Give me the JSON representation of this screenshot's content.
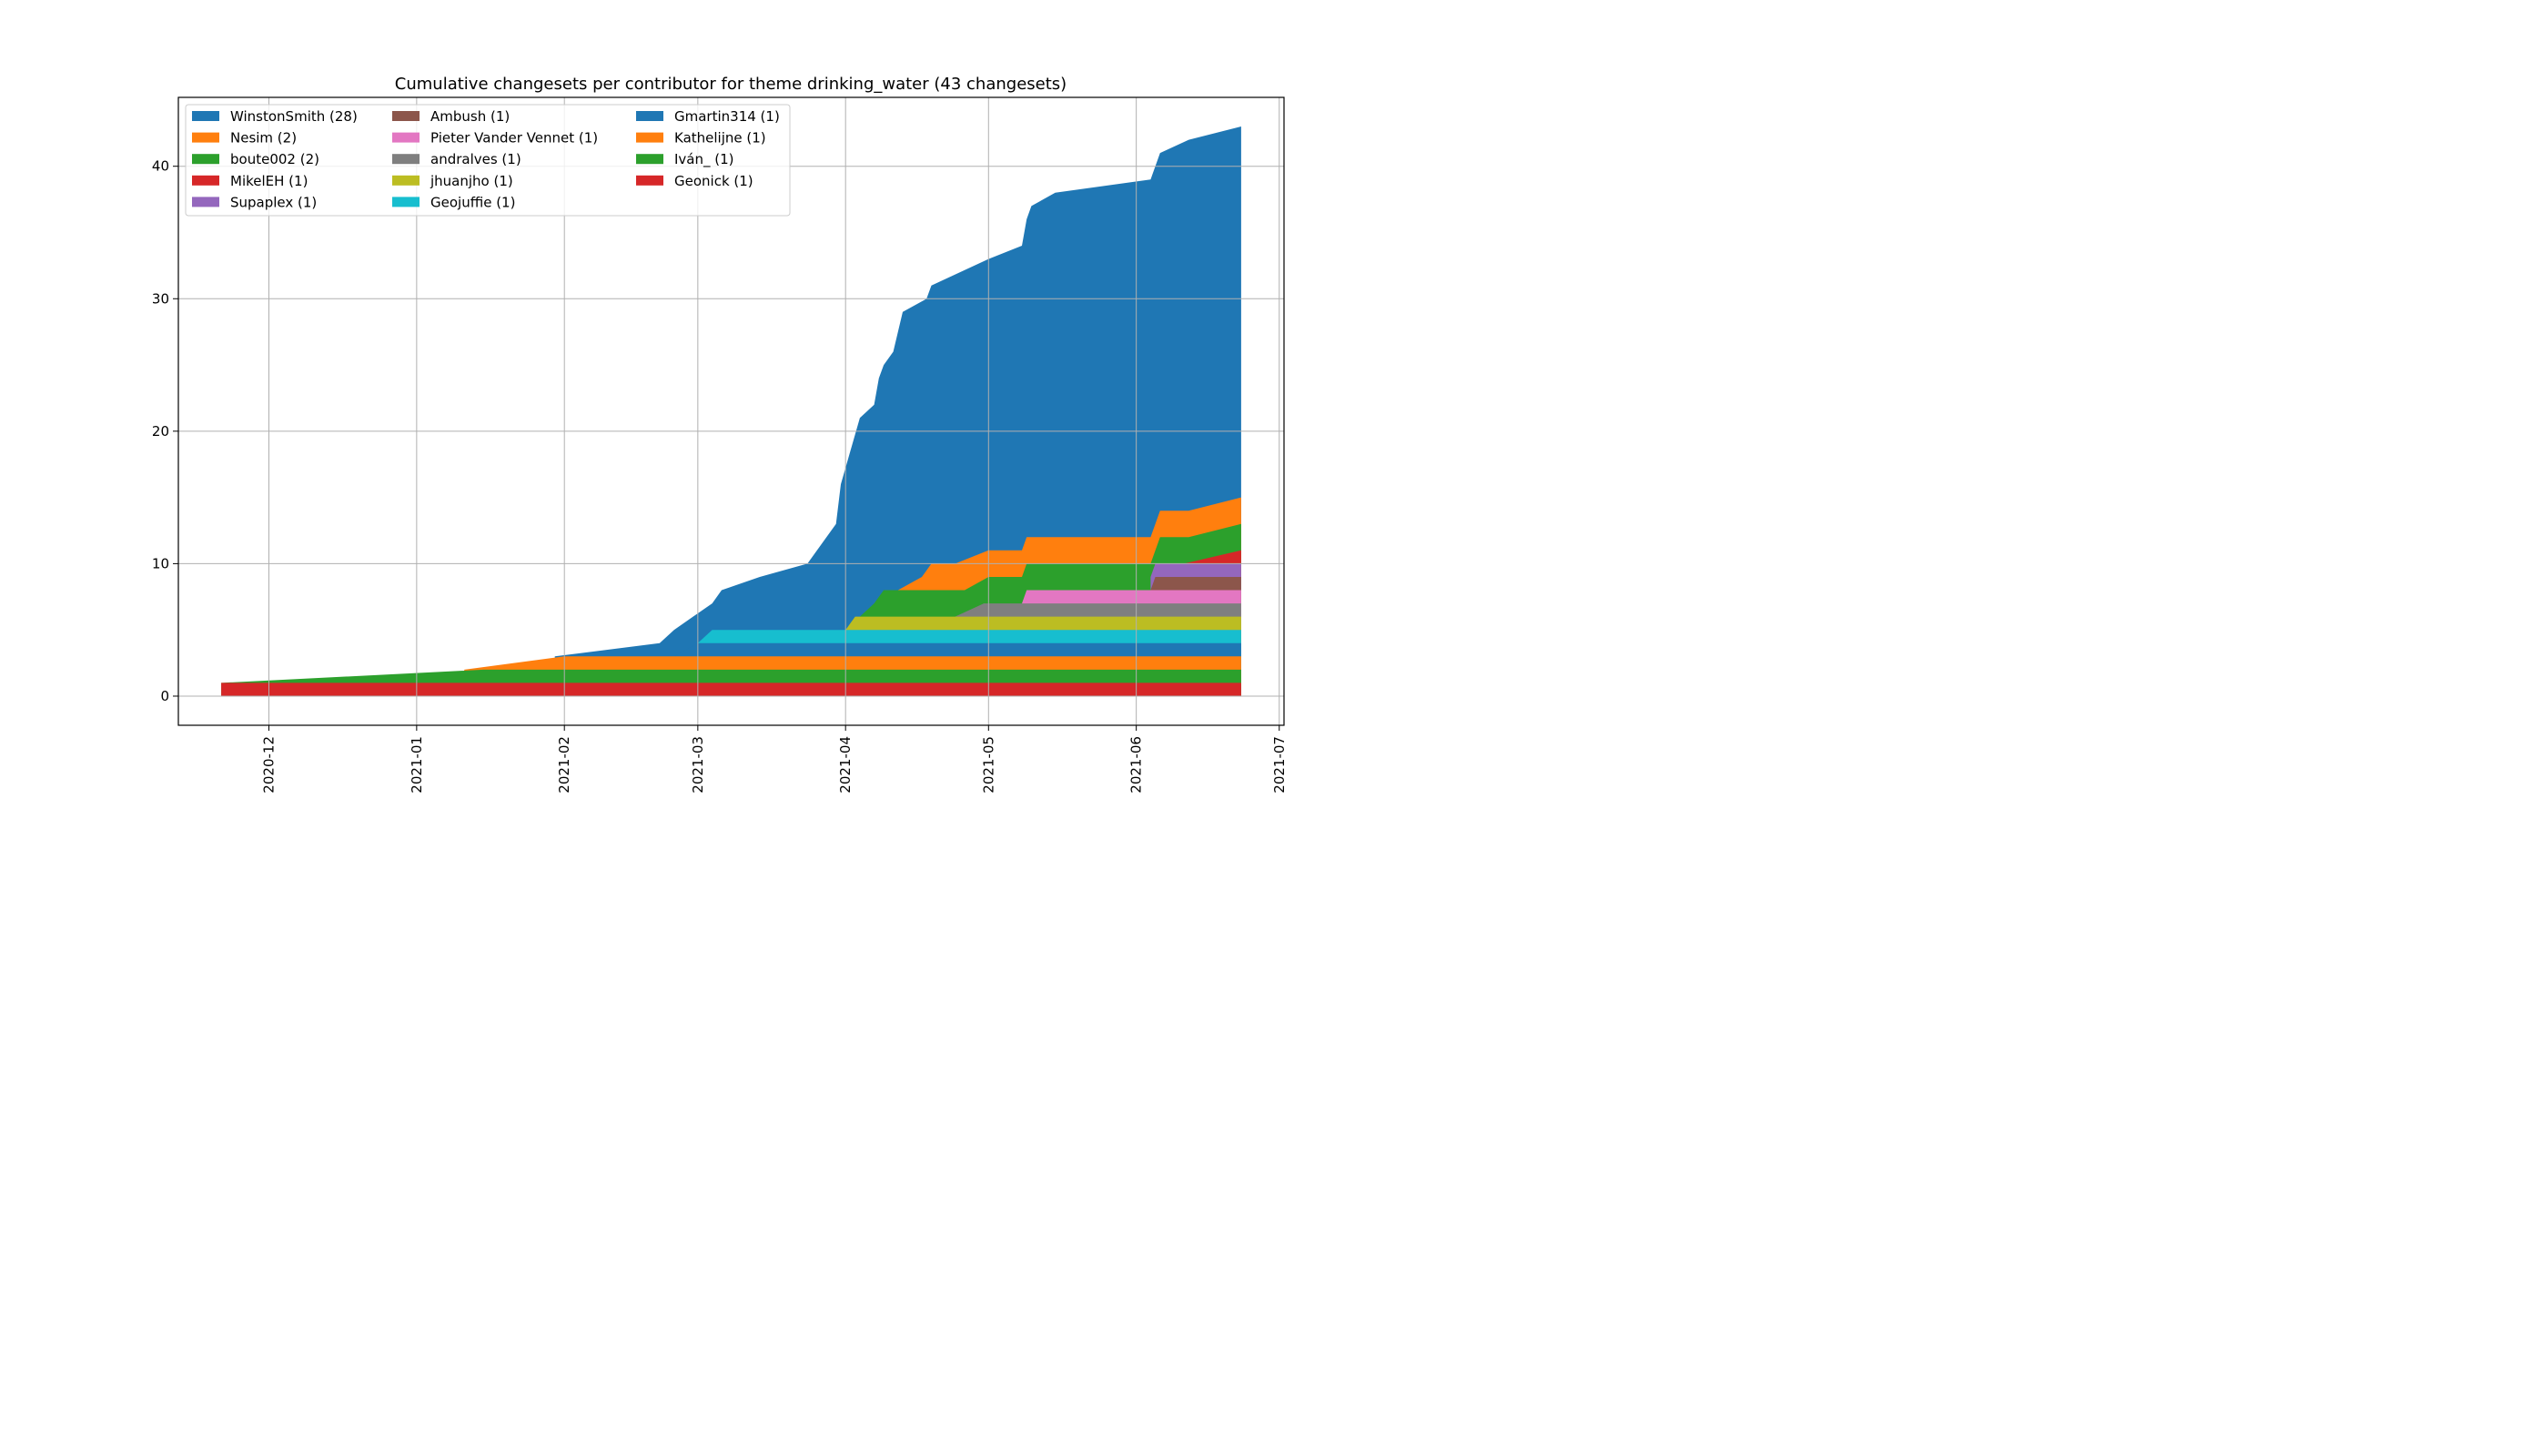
{
  "chart_data": {
    "type": "area",
    "title": "Cumulative changesets per contributor for theme drinking_water (43 changesets)",
    "xlabel": "",
    "ylabel": "",
    "x_axis": "date",
    "xlim": [
      "2020-11-12",
      "2021-07-02"
    ],
    "ylim": [
      -2.2,
      45.2
    ],
    "y_ticks": [
      0,
      10,
      20,
      30,
      40
    ],
    "x_ticks": [
      "2020-12-01",
      "2021-01-01",
      "2021-02-01",
      "2021-03-01",
      "2021-04-01",
      "2021-05-01",
      "2021-06-01",
      "2021-07-01"
    ],
    "x_tick_labels": [
      "2020-12",
      "2021-01",
      "2021-02",
      "2021-03",
      "2021-04",
      "2021-05",
      "2021-06",
      "2021-07"
    ],
    "grid": true,
    "legend_position": "top-left",
    "legend_columns": 3,
    "series": [
      {
        "name": "Geonick (1)",
        "color": "#d62728",
        "points": [
          [
            "2020-11-21",
            1
          ],
          [
            "2021-06-23",
            1
          ]
        ]
      },
      {
        "name": "Iván_ (1)",
        "color": "#2ca02c",
        "points": [
          [
            "2020-11-21",
            1
          ],
          [
            "2021-01-15",
            2
          ],
          [
            "2021-06-23",
            2
          ]
        ]
      },
      {
        "name": "Kathelijne (1)",
        "color": "#ff7f0e",
        "points": [
          [
            "2021-01-11",
            2
          ],
          [
            "2021-02-01",
            3
          ],
          [
            "2021-06-23",
            3
          ]
        ]
      },
      {
        "name": "Gmartin314 (1)",
        "color": "#1f77b4",
        "points": [
          [
            "2021-02-24",
            3
          ],
          [
            "2021-03-01",
            4
          ],
          [
            "2021-06-23",
            4
          ]
        ]
      },
      {
        "name": "Geojuffie (1)",
        "color": "#17becf",
        "points": [
          [
            "2021-03-01",
            4
          ],
          [
            "2021-03-04",
            5
          ],
          [
            "2021-06-23",
            5
          ]
        ]
      },
      {
        "name": "jhuanjho (1)",
        "color": "#bcbd22",
        "points": [
          [
            "2021-04-01",
            5
          ],
          [
            "2021-04-03",
            6
          ],
          [
            "2021-06-23",
            6
          ]
        ]
      },
      {
        "name": "andralves (1)",
        "color": "#7f7f7f",
        "points": [
          [
            "2021-04-24",
            6
          ],
          [
            "2021-04-30",
            7
          ],
          [
            "2021-06-23",
            7
          ]
        ]
      },
      {
        "name": "Pieter Vander Vennet (1)",
        "color": "#e377c2",
        "points": [
          [
            "2021-05-08",
            7
          ],
          [
            "2021-05-09",
            8
          ],
          [
            "2021-06-23",
            8
          ]
        ]
      },
      {
        "name": "Ambush (1)",
        "color": "#8c564b",
        "points": [
          [
            "2021-06-04",
            8
          ],
          [
            "2021-06-05",
            9
          ],
          [
            "2021-06-23",
            9
          ]
        ]
      },
      {
        "name": "Supaplex (1)",
        "color": "#9467bd",
        "points": [
          [
            "2021-06-04",
            9
          ],
          [
            "2021-06-05",
            10
          ],
          [
            "2021-06-23",
            10
          ]
        ]
      },
      {
        "name": "MikelEH (1)",
        "color": "#d62728",
        "points": [
          [
            "2021-06-11",
            10
          ],
          [
            "2021-06-23",
            11
          ]
        ]
      },
      {
        "name": "boute002 (2)",
        "color": "#2ca02c",
        "points": [
          [
            "2021-04-04",
            6
          ],
          [
            "2021-04-07",
            7
          ],
          [
            "2021-04-09",
            8
          ],
          [
            "2021-04-26",
            8
          ],
          [
            "2021-05-01",
            9
          ],
          [
            "2021-05-08",
            9
          ],
          [
            "2021-05-09",
            10
          ],
          [
            "2021-06-04",
            10
          ],
          [
            "2021-06-06",
            12
          ],
          [
            "2021-06-12",
            12
          ],
          [
            "2021-06-23",
            13
          ]
        ]
      },
      {
        "name": "Nesim (2)",
        "color": "#ff7f0e",
        "points": [
          [
            "2021-04-12",
            8
          ],
          [
            "2021-04-17",
            9
          ],
          [
            "2021-04-19",
            10
          ],
          [
            "2021-04-24",
            10
          ],
          [
            "2021-05-01",
            11
          ],
          [
            "2021-05-08",
            11
          ],
          [
            "2021-05-09",
            12
          ],
          [
            "2021-06-04",
            12
          ],
          [
            "2021-06-06",
            14
          ],
          [
            "2021-06-12",
            14
          ],
          [
            "2021-06-23",
            15
          ]
        ]
      },
      {
        "name": "WinstonSmith (28)",
        "color": "#1f77b4",
        "points": [
          [
            "2021-01-30",
            3
          ],
          [
            "2021-02-21",
            4
          ],
          [
            "2021-02-24",
            5
          ],
          [
            "2021-02-28",
            6
          ],
          [
            "2021-03-04",
            7
          ],
          [
            "2021-03-06",
            8
          ],
          [
            "2021-03-14",
            9
          ],
          [
            "2021-03-24",
            10
          ],
          [
            "2021-03-30",
            13
          ],
          [
            "2021-03-31",
            16
          ],
          [
            "2021-04-04",
            21
          ],
          [
            "2021-04-07",
            22
          ],
          [
            "2021-04-08",
            24
          ],
          [
            "2021-04-09",
            25
          ],
          [
            "2021-04-11",
            26
          ],
          [
            "2021-04-13",
            29
          ],
          [
            "2021-04-18",
            30
          ],
          [
            "2021-04-19",
            31
          ],
          [
            "2021-05-01",
            33
          ],
          [
            "2021-05-08",
            34
          ],
          [
            "2021-05-09",
            36
          ],
          [
            "2021-05-10",
            37
          ],
          [
            "2021-05-15",
            38
          ],
          [
            "2021-06-04",
            39
          ],
          [
            "2021-06-06",
            41
          ],
          [
            "2021-06-12",
            42
          ],
          [
            "2021-06-23",
            43
          ]
        ]
      }
    ]
  },
  "legend_items": [
    {
      "label": "WinstonSmith (28)",
      "color": "#1f77b4"
    },
    {
      "label": "Nesim (2)",
      "color": "#ff7f0e"
    },
    {
      "label": "boute002 (2)",
      "color": "#2ca02c"
    },
    {
      "label": "MikelEH (1)",
      "color": "#d62728"
    },
    {
      "label": "Supaplex (1)",
      "color": "#9467bd"
    },
    {
      "label": "Ambush (1)",
      "color": "#8c564b"
    },
    {
      "label": "Pieter Vander Vennet (1)",
      "color": "#e377c2"
    },
    {
      "label": "andralves (1)",
      "color": "#7f7f7f"
    },
    {
      "label": "jhuanjho (1)",
      "color": "#bcbd22"
    },
    {
      "label": "Geojuffie (1)",
      "color": "#17becf"
    },
    {
      "label": "Gmartin314 (1)",
      "color": "#1f77b4"
    },
    {
      "label": "Kathelijne (1)",
      "color": "#ff7f0e"
    },
    {
      "label": "Iván_ (1)",
      "color": "#2ca02c"
    },
    {
      "label": "Geonick (1)",
      "color": "#d62728"
    }
  ]
}
